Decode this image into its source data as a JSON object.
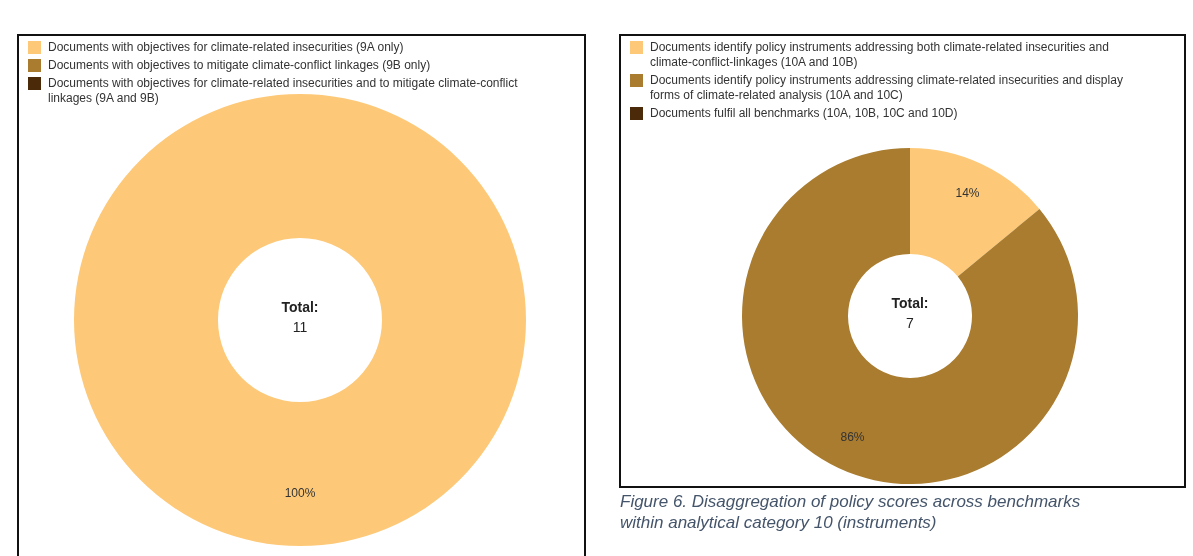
{
  "chart_data": [
    {
      "type": "donut",
      "categories": [
        "Documents with objectives for climate-related insecurities (9A only)",
        "Documents with objectives to mitigate climate-conflict linkages (9B only)",
        "Documents with objectives for climate-related insecurities and to mitigate climate-conflict linkages (9A and 9B)"
      ],
      "values": [
        100,
        0,
        0
      ],
      "value_labels": [
        "100%",
        null,
        null
      ],
      "colors": [
        "#fdc978",
        "#a97c2f",
        "#4a2a08"
      ],
      "legend": "top",
      "annotations": [
        "Total:",
        "11"
      ]
    },
    {
      "type": "donut",
      "categories": [
        "Documents identify policy instruments addressing both climate-related insecurities and climate-conflict-linkages (10A and 10B)",
        "Documents identify policy instruments addressing climate-related insecurities and display forms of climate-related analysis (10A and 10C)",
        "Documents fulfil all benchmarks (10A, 10B, 10C and 10D)"
      ],
      "values": [
        14,
        86,
        0
      ],
      "value_labels": [
        "14%",
        "86%",
        null
      ],
      "colors": [
        "#fdc978",
        "#a97c2f",
        "#4a2a08"
      ],
      "legend": "top",
      "annotations": [
        "Total:",
        "7",
        "Figure 6. Disaggregation of policy scores across benchmarks within analytical category 10 (instruments)"
      ]
    }
  ]
}
